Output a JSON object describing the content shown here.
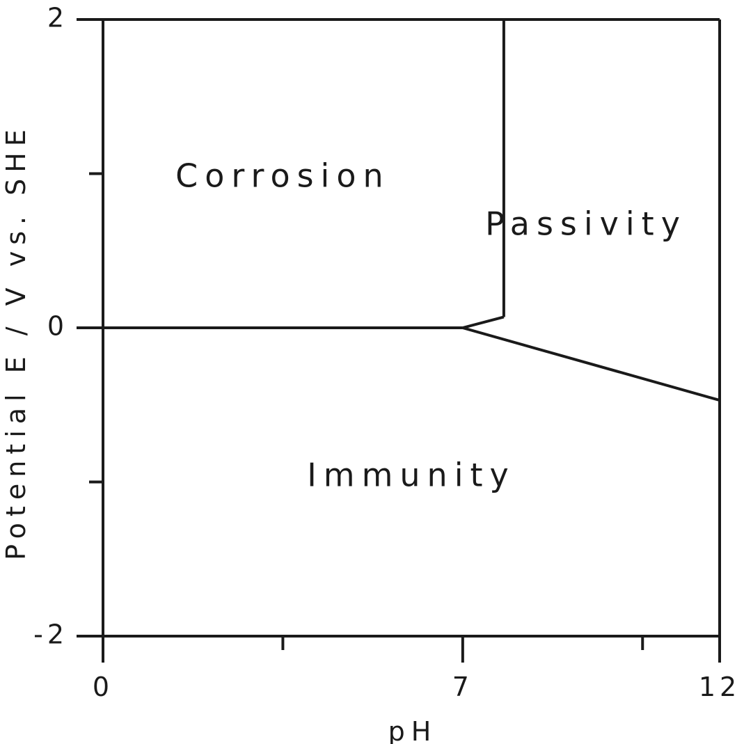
{
  "chart_data": {
    "type": "line",
    "title": "",
    "xlabel": "pH",
    "ylabel": "Potential E / V vs. SHE",
    "xlim": [
      0,
      12
    ],
    "ylim": [
      -2,
      2
    ],
    "x_tick_labels": [
      "0",
      "7",
      "12"
    ],
    "y_tick_labels": [
      "2",
      "0",
      "-2"
    ],
    "grid": false,
    "series": [
      {
        "x": [
          0,
          7
        ],
        "y": [
          0,
          0
        ]
      },
      {
        "x": [
          7,
          7.8
        ],
        "y": [
          0,
          0.07
        ]
      },
      {
        "x": [
          7.8,
          7.8
        ],
        "y": [
          0.07,
          2
        ]
      },
      {
        "x": [
          7,
          12
        ],
        "y": [
          0,
          -0.47
        ]
      }
    ],
    "annotations": [
      {
        "text": "Corrosion",
        "x": 3.5,
        "y": 0.97
      },
      {
        "text": "Passivity",
        "x": 9.4,
        "y": 0.66
      },
      {
        "text": "Immunity",
        "x": 6.0,
        "y": -0.97
      }
    ]
  }
}
